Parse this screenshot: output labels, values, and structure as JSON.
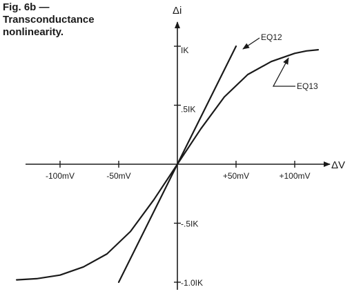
{
  "caption": {
    "line1": "Fig. 6b —",
    "line2": "Transconductance",
    "line3": "nonlinearity."
  },
  "chart_data": {
    "type": "line",
    "title": "Fig. 6b — Transconductance nonlinearity.",
    "xlabel": "ΔV",
    "ylabel": "Δi",
    "xlim": [
      -140,
      125
    ],
    "ylim": [
      -1.05,
      1.12
    ],
    "x_ticks": [
      {
        "value": -100,
        "label": "-100mV"
      },
      {
        "value": -50,
        "label": "-50mV"
      },
      {
        "value": 50,
        "label": "+50mV"
      },
      {
        "value": 100,
        "label": "+100mV"
      }
    ],
    "y_ticks": [
      {
        "value": 1.0,
        "label": "IK"
      },
      {
        "value": 0.5,
        "label": ".5IK"
      },
      {
        "value": -0.5,
        "label": "-.5IK"
      },
      {
        "value": -1.0,
        "label": "-1.0IK"
      }
    ],
    "series": [
      {
        "name": "EQ12",
        "x": [
          -50,
          0,
          50
        ],
        "y": [
          -1.0,
          0.0,
          1.0
        ]
      },
      {
        "name": "EQ13",
        "x": [
          -137,
          -120,
          -100,
          -80,
          -60,
          -40,
          -20,
          0,
          20,
          40,
          60,
          80,
          100,
          110,
          120
        ],
        "y": [
          -0.98,
          -0.97,
          -0.94,
          -0.87,
          -0.76,
          -0.57,
          -0.3,
          0.0,
          0.3,
          0.57,
          0.76,
          0.87,
          0.94,
          0.96,
          0.97
        ]
      }
    ],
    "annotations": [
      {
        "text": "EQ12",
        "series": "EQ12"
      },
      {
        "text": "EQ13",
        "series": "EQ13"
      }
    ],
    "grid": false,
    "legend": "none"
  }
}
